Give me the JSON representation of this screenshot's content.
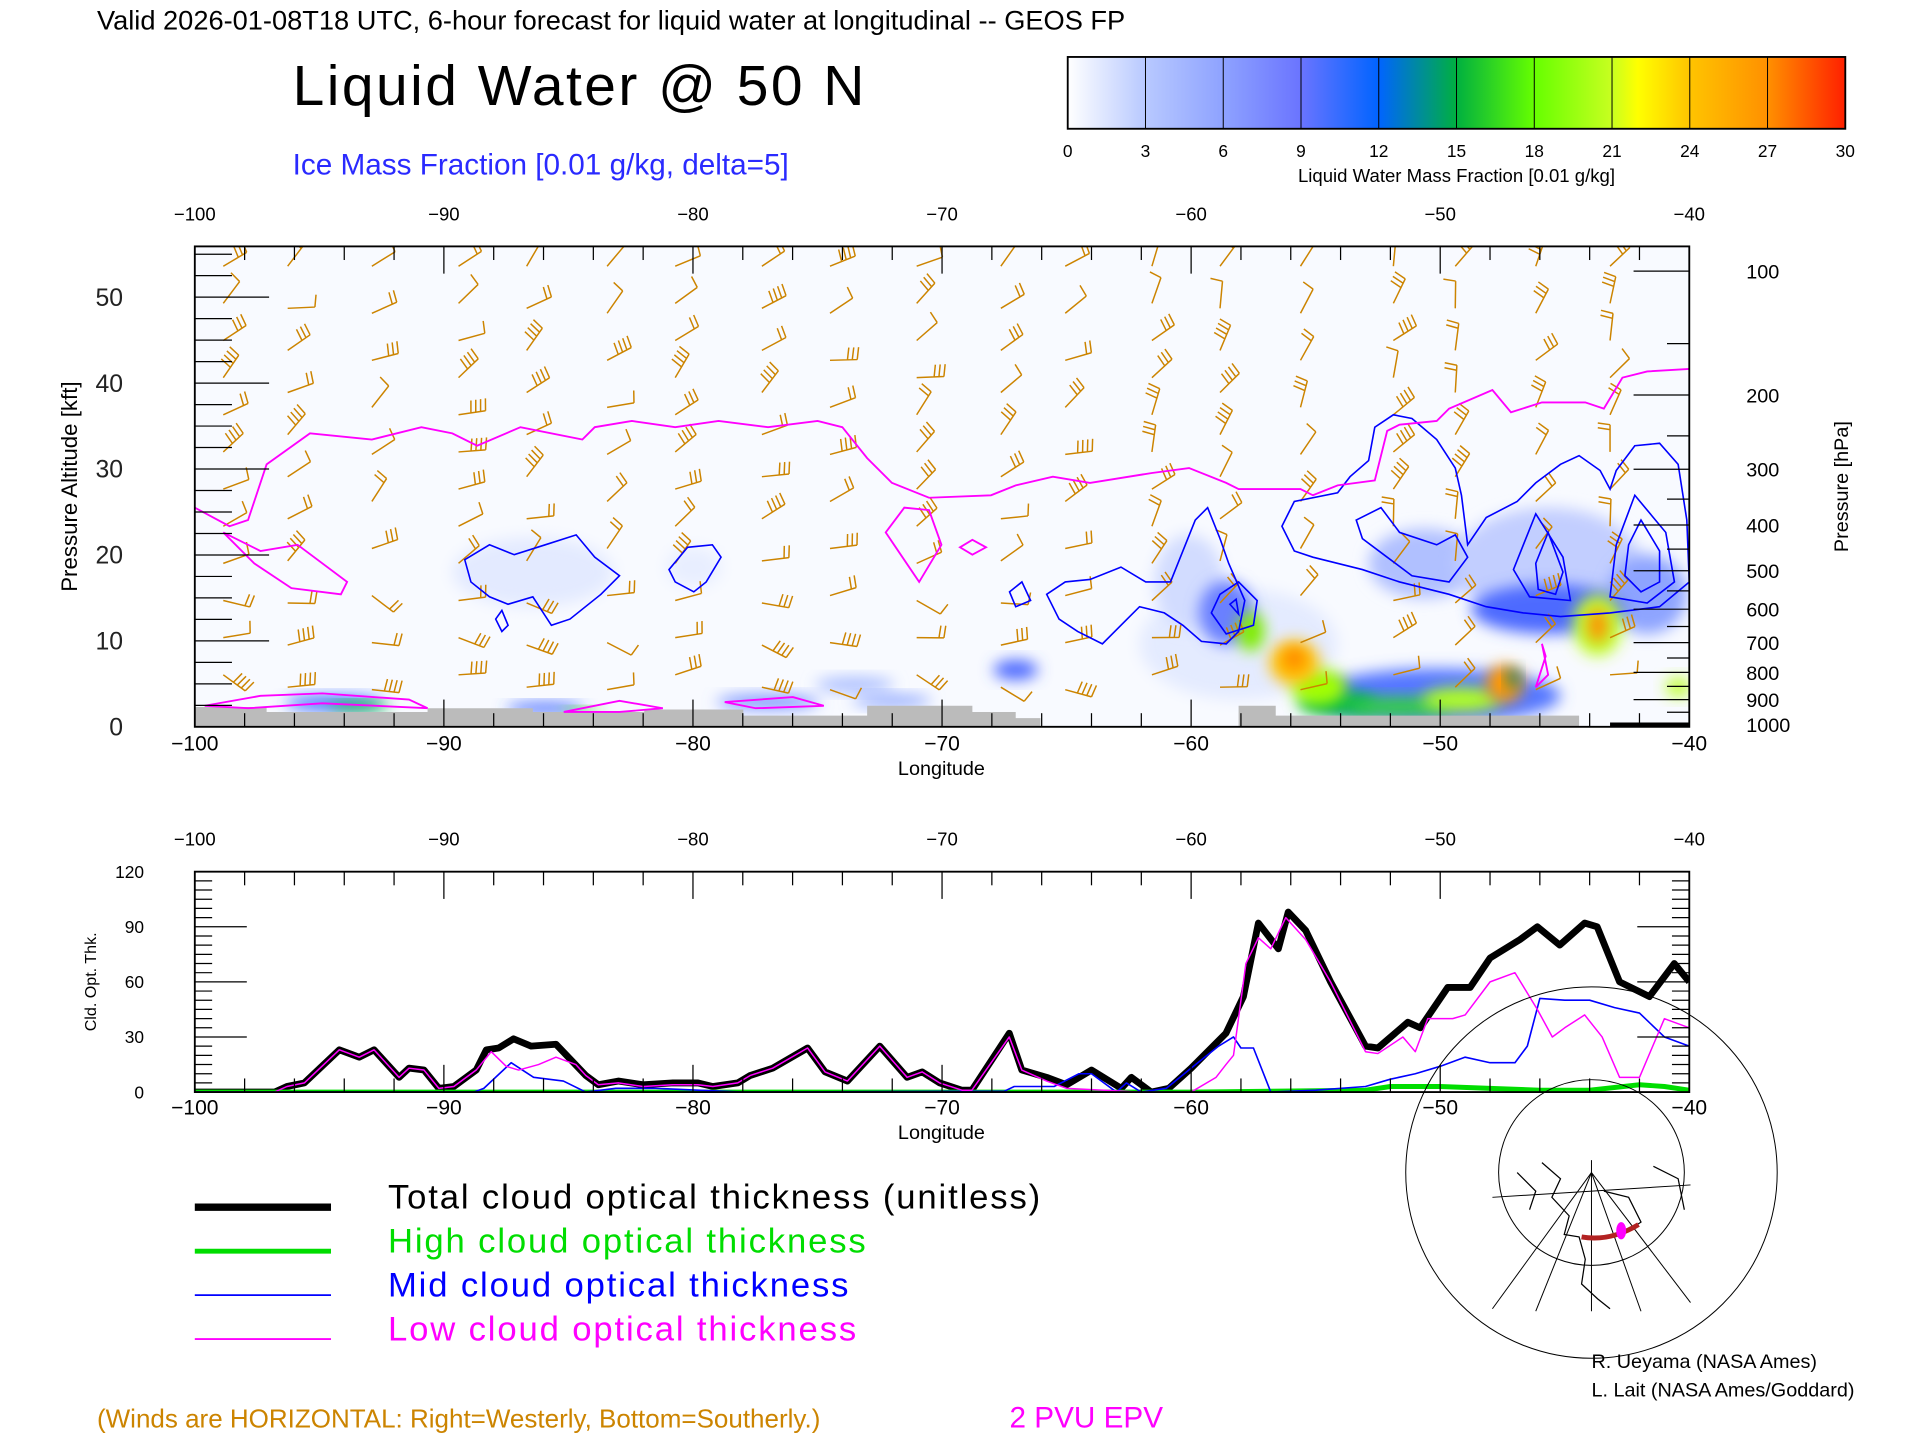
{
  "header": {
    "title": "Valid 2026-01-08T18 UTC, 6-hour forecast for liquid water at longitudinal -- GEOS FP",
    "main_title": "Liquid Water @ 50 N",
    "subtitle": "Ice Mass Fraction [0.01 g/kg, delta=5]"
  },
  "colorbar": {
    "ticks": [
      "0",
      "3",
      "6",
      "9",
      "12",
      "15",
      "18",
      "21",
      "24",
      "27",
      "30"
    ],
    "label": "Liquid Water Mass Fraction [0.01 g/kg]",
    "stops": [
      {
        "v": 0,
        "color": "#ffffff"
      },
      {
        "v": 3,
        "color": "#b8c9ff"
      },
      {
        "v": 6,
        "color": "#8ea2ff"
      },
      {
        "v": 9,
        "color": "#6a74ff"
      },
      {
        "v": 12,
        "color": "#0064ff"
      },
      {
        "v": 15,
        "color": "#00b040"
      },
      {
        "v": 18,
        "color": "#66ff00"
      },
      {
        "v": 21,
        "color": "#c8ff20"
      },
      {
        "v": 22,
        "color": "#ffff00"
      },
      {
        "v": 24,
        "color": "#ffc400"
      },
      {
        "v": 27,
        "color": "#ff9000"
      },
      {
        "v": 30,
        "color": "#ff2000"
      }
    ]
  },
  "chart_data": [
    {
      "type": "heatmap",
      "title": "Liquid Water @ 50 N",
      "xlabel": "Longitude",
      "ylabel": "Pressure Altitude [kft]",
      "y2label": "Pressure [hPa]",
      "xlim": [
        -100,
        -40
      ],
      "ylim": [
        0,
        56
      ],
      "xticks": [
        -100,
        -90,
        -80,
        -70,
        -60,
        -50,
        -40
      ],
      "xtick_labels": [
        "−100",
        "−90",
        "−80",
        "−70",
        "−60",
        "−50",
        "−40"
      ],
      "yticks": [
        0,
        10,
        20,
        30,
        40,
        50
      ],
      "ytick_labels": [
        "0",
        "10",
        "20",
        "30",
        "40",
        "50"
      ],
      "y2ticks": [
        100,
        200,
        300,
        400,
        500,
        600,
        700,
        800,
        900,
        1000
      ],
      "y2tick_labels": [
        "100",
        "200",
        "300",
        "400",
        "500",
        "600",
        "700",
        "800",
        "900",
        "1000"
      ],
      "overlays": [
        "Ice Mass Fraction contours (blue)",
        "2 PVU EPV (magenta)",
        "Wind barbs (orange)"
      ]
    },
    {
      "type": "line",
      "xlabel": "Longitude",
      "ylabel": "Cld. Opt. Thk.",
      "xlim": [
        -100,
        -40
      ],
      "ylim": [
        0,
        120
      ],
      "xticks": [
        -100,
        -90,
        -80,
        -70,
        -60,
        -50,
        -40
      ],
      "xtick_labels": [
        "−100",
        "−90",
        "−80",
        "−70",
        "−60",
        "−50",
        "−40"
      ],
      "yticks": [
        0,
        30,
        60,
        90,
        120
      ],
      "ytick_labels": [
        "0",
        "30",
        "60",
        "90",
        "120"
      ],
      "series": [
        {
          "name": "Total cloud optical thickness (unitless)",
          "color": "#000000",
          "points": [
            [
              -100,
              0
            ],
            [
              -96.8,
              0
            ],
            [
              -96.3,
              3
            ],
            [
              -95.6,
              5
            ],
            [
              -94.2,
              23
            ],
            [
              -93.4,
              19
            ],
            [
              -92.8,
              23
            ],
            [
              -91.8,
              8
            ],
            [
              -91.4,
              13
            ],
            [
              -90.8,
              12
            ],
            [
              -90.2,
              2
            ],
            [
              -89.6,
              3
            ],
            [
              -88.7,
              12
            ],
            [
              -88.3,
              23
            ],
            [
              -87.8,
              24
            ],
            [
              -87.2,
              29
            ],
            [
              -86.5,
              25
            ],
            [
              -85.5,
              26
            ],
            [
              -84.3,
              9
            ],
            [
              -83.8,
              4
            ],
            [
              -83,
              6
            ],
            [
              -82,
              4
            ],
            [
              -80.8,
              5
            ],
            [
              -79.8,
              5
            ],
            [
              -79.2,
              3
            ],
            [
              -78.2,
              5
            ],
            [
              -77.7,
              9
            ],
            [
              -76.8,
              13
            ],
            [
              -75.4,
              24
            ],
            [
              -74.7,
              11
            ],
            [
              -73.8,
              6
            ],
            [
              -72.5,
              25
            ],
            [
              -71.4,
              8
            ],
            [
              -70.8,
              11
            ],
            [
              -70.1,
              5
            ],
            [
              -69.2,
              1
            ],
            [
              -68.8,
              1
            ],
            [
              -67.3,
              32
            ],
            [
              -66.8,
              12
            ],
            [
              -65.8,
              8
            ],
            [
              -65,
              4
            ],
            [
              -64,
              12
            ],
            [
              -62.8,
              2
            ],
            [
              -62.4,
              8
            ],
            [
              -61.6,
              0
            ],
            [
              -60.9,
              2
            ],
            [
              -60,
              13
            ],
            [
              -58.6,
              32
            ],
            [
              -57.9,
              52
            ],
            [
              -57.3,
              92
            ],
            [
              -56.5,
              78
            ],
            [
              -56.1,
              98
            ],
            [
              -55.4,
              88
            ],
            [
              -54.4,
              60
            ],
            [
              -53,
              25
            ],
            [
              -52.5,
              24
            ],
            [
              -51.3,
              38
            ],
            [
              -50.8,
              35
            ],
            [
              -49.7,
              57
            ],
            [
              -48.8,
              57
            ],
            [
              -48,
              73
            ],
            [
              -46.8,
              83
            ],
            [
              -46.1,
              90
            ],
            [
              -45.2,
              80
            ],
            [
              -44.2,
              92
            ],
            [
              -43.7,
              90
            ],
            [
              -42.8,
              60
            ],
            [
              -41.6,
              52
            ],
            [
              -40.6,
              70
            ],
            [
              -40,
              60
            ]
          ]
        },
        {
          "name": "High cloud optical thickness",
          "color": "#00dd00",
          "points": [
            [
              -100,
              0
            ],
            [
              -60,
              0
            ],
            [
              -53,
              1
            ],
            [
              -52,
              3
            ],
            [
              -50,
              3
            ],
            [
              -48,
              2
            ],
            [
              -46,
              1
            ],
            [
              -44,
              1
            ],
            [
              -42,
              4
            ],
            [
              -41,
              3
            ],
            [
              -40,
              1
            ]
          ]
        },
        {
          "name": "Mid cloud optical thickness",
          "color": "#0000ff",
          "points": [
            [
              -100,
              0
            ],
            [
              -88.8,
              0
            ],
            [
              -88.4,
              2
            ],
            [
              -87.3,
              16
            ],
            [
              -86.4,
              8
            ],
            [
              -85.2,
              6
            ],
            [
              -84.3,
              0
            ],
            [
              -83.1,
              2
            ],
            [
              -81.5,
              2
            ],
            [
              -79.8,
              1
            ],
            [
              -78,
              0
            ],
            [
              -67.5,
              0.5
            ],
            [
              -67.1,
              3
            ],
            [
              -65.5,
              3
            ],
            [
              -64.5,
              10
            ],
            [
              -64,
              10
            ],
            [
              -63,
              0
            ],
            [
              -62.6,
              5
            ],
            [
              -62,
              0
            ],
            [
              -61,
              2
            ],
            [
              -60,
              13
            ],
            [
              -58.9,
              25
            ],
            [
              -58.3,
              30
            ],
            [
              -58,
              24
            ],
            [
              -57.5,
              24
            ],
            [
              -56.8,
              0
            ],
            [
              -55,
              1
            ],
            [
              -53,
              3
            ],
            [
              -52,
              7
            ],
            [
              -51,
              10
            ],
            [
              -50,
              14
            ],
            [
              -49,
              19
            ],
            [
              -48,
              16
            ],
            [
              -47,
              16
            ],
            [
              -46.5,
              25
            ],
            [
              -46,
              51
            ],
            [
              -45,
              50
            ],
            [
              -44,
              50
            ],
            [
              -43,
              46
            ],
            [
              -42,
              43
            ],
            [
              -41,
              30
            ],
            [
              -40,
              25
            ]
          ]
        },
        {
          "name": "Low cloud optical thickness",
          "color": "#ff00ff",
          "points": [
            [
              -100,
              0
            ],
            [
              -96.8,
              0
            ],
            [
              -96.3,
              3
            ],
            [
              -95.6,
              5
            ],
            [
              -94.2,
              23
            ],
            [
              -93.4,
              19
            ],
            [
              -92.8,
              23
            ],
            [
              -91.8,
              8
            ],
            [
              -91.4,
              13
            ],
            [
              -90.8,
              12
            ],
            [
              -90.2,
              2
            ],
            [
              -89.6,
              3
            ],
            [
              -88.7,
              12
            ],
            [
              -88.1,
              22
            ],
            [
              -87.5,
              14
            ],
            [
              -87,
              12
            ],
            [
              -86.2,
              15
            ],
            [
              -85.5,
              19
            ],
            [
              -84.7,
              15
            ],
            [
              -84.3,
              9
            ],
            [
              -83.8,
              4
            ],
            [
              -83,
              5
            ],
            [
              -82,
              3
            ],
            [
              -80.8,
              4
            ],
            [
              -79.8,
              4
            ],
            [
              -79.2,
              3
            ],
            [
              -78.2,
              5
            ],
            [
              -77.7,
              9
            ],
            [
              -76.8,
              13
            ],
            [
              -75.4,
              24
            ],
            [
              -74.7,
              11
            ],
            [
              -73.8,
              6
            ],
            [
              -72.5,
              25
            ],
            [
              -71.4,
              8
            ],
            [
              -70.8,
              11
            ],
            [
              -70.1,
              5
            ],
            [
              -69.2,
              1
            ],
            [
              -68.8,
              1
            ],
            [
              -67.3,
              30
            ],
            [
              -66.8,
              12
            ],
            [
              -65.8,
              6
            ],
            [
              -65,
              2
            ],
            [
              -62,
              0
            ],
            [
              -60,
              0
            ],
            [
              -59,
              8
            ],
            [
              -58.6,
              15
            ],
            [
              -58.3,
              20
            ],
            [
              -57.8,
              70
            ],
            [
              -57.3,
              84
            ],
            [
              -56.8,
              78
            ],
            [
              -56.2,
              95
            ],
            [
              -55.4,
              83
            ],
            [
              -54.4,
              60
            ],
            [
              -53,
              22
            ],
            [
              -52.5,
              21
            ],
            [
              -51.5,
              30
            ],
            [
              -51,
              22
            ],
            [
              -50.5,
              40
            ],
            [
              -49.5,
              40
            ],
            [
              -49,
              42
            ],
            [
              -48,
              60
            ],
            [
              -47,
              65
            ],
            [
              -46.1,
              45
            ],
            [
              -45.5,
              30
            ],
            [
              -45,
              35
            ],
            [
              -44.2,
              42
            ],
            [
              -43.5,
              30
            ],
            [
              -42.8,
              8
            ],
            [
              -42,
              8
            ],
            [
              -41,
              40
            ],
            [
              -40,
              35
            ]
          ]
        }
      ]
    }
  ],
  "legend": [
    {
      "label": "Total cloud optical thickness (unitless)",
      "color": "#000000"
    },
    {
      "label": "High cloud optical thickness",
      "color": "#00dd00"
    },
    {
      "label": "Mid cloud optical thickness",
      "color": "#0000ff"
    },
    {
      "label": "Low cloud optical thickness",
      "color": "#ff00ff"
    }
  ],
  "credits": [
    "R. Ueyama (NASA Ames)",
    "L. Lait (NASA Ames/Goddard)"
  ],
  "footer": {
    "winds_note": "(Winds are HORIZONTAL: Right=Westerly, Bottom=Southerly.)",
    "epv_label": "2 PVU EPV"
  },
  "colors": {
    "wind": "#cc8400",
    "ice": "#0000ff",
    "epv": "#ff00ff",
    "terrain": "#bbbbbb"
  }
}
